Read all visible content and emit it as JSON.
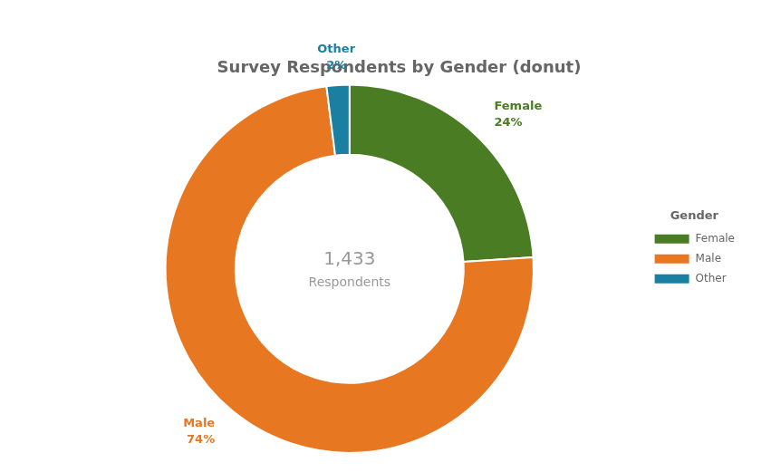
{
  "chart_data": {
    "type": "donut",
    "title": "Survey Respondents by Gender (donut)",
    "categories": [
      "Female",
      "Male",
      "Other"
    ],
    "values": [
      24,
      74,
      2
    ],
    "value_labels": [
      "24%",
      "74%",
      "2%"
    ],
    "colors": [
      "#4a7c23",
      "#e87722",
      "#1a7fa0"
    ],
    "data_labels": true,
    "legend": "right",
    "legend_title": "Gender",
    "annotations": [
      "1,433",
      "Respondents"
    ]
  }
}
